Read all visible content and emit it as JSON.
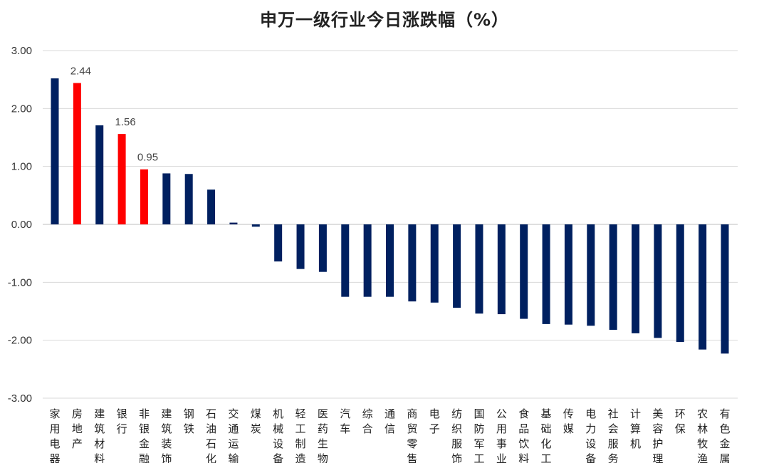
{
  "chart_data": {
    "type": "bar",
    "title": "申万一级行业今日涨跌幅（%）",
    "xlabel": "",
    "ylabel": "",
    "ylim": [
      -3.0,
      3.0
    ],
    "yticks": [
      "3.00",
      "2.00",
      "1.00",
      "0.00",
      "-1.00",
      "-2.00",
      "-3.00"
    ],
    "grid": true,
    "categories": [
      "家用电器",
      "房地产",
      "建筑材料",
      "银行",
      "非银金融",
      "建筑装饰",
      "钢铁",
      "石油石化",
      "交通运输",
      "煤炭",
      "机械设备",
      "轻工制造",
      "医药生物",
      "汽车",
      "综合",
      "通信",
      "商贸零售",
      "电子",
      "纺织服饰",
      "国防军工",
      "公用事业",
      "食品饮料",
      "基础化工",
      "传媒",
      "电力设备",
      "社会服务",
      "计算机",
      "美容护理",
      "环保",
      "农林牧渔",
      "有色金属"
    ],
    "values": [
      2.52,
      2.44,
      1.71,
      1.56,
      0.95,
      0.88,
      0.87,
      0.6,
      0.03,
      -0.04,
      -0.64,
      -0.77,
      -0.82,
      -1.25,
      -1.25,
      -1.25,
      -1.33,
      -1.35,
      -1.44,
      -1.54,
      -1.55,
      -1.63,
      -1.72,
      -1.73,
      -1.75,
      -1.82,
      -1.88,
      -1.96,
      -2.03,
      -2.16,
      -2.23
    ],
    "highlight": [
      {
        "category": "房地产",
        "label": "2.44"
      },
      {
        "category": "银行",
        "label": "1.56"
      },
      {
        "category": "非银金融",
        "label": "0.95"
      }
    ],
    "colors": {
      "default": "#002060",
      "highlight": "#ff0000",
      "grid": "#d9d9d9"
    }
  }
}
